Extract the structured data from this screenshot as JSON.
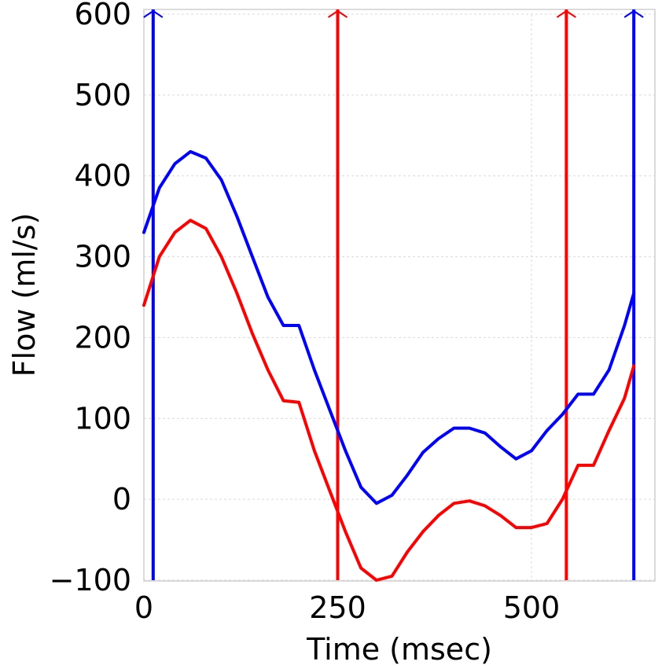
{
  "chart_data": {
    "type": "line",
    "xlabel": "Time (msec)",
    "ylabel": "Flow (ml/s)",
    "xlim": [
      0,
      660
    ],
    "ylim": [
      -100,
      600
    ],
    "xticks": [
      0,
      250,
      500
    ],
    "yticks": [
      600,
      500,
      400,
      300,
      200,
      100,
      0,
      -100
    ],
    "grid": true,
    "series": [
      {
        "color": "#0000ff",
        "x": [
          0,
          20,
          40,
          60,
          80,
          100,
          120,
          140,
          160,
          180,
          200,
          220,
          240,
          260,
          280,
          300,
          320,
          340,
          360,
          380,
          400,
          420,
          440,
          460,
          480,
          500,
          520,
          540,
          560,
          580,
          600,
          620,
          632
        ],
        "y": [
          330,
          385,
          415,
          430,
          422,
          395,
          350,
          300,
          250,
          215,
          215,
          160,
          110,
          60,
          15,
          -5,
          5,
          30,
          58,
          75,
          88,
          88,
          82,
          65,
          50,
          60,
          85,
          105,
          130,
          130,
          160,
          215,
          255
        ]
      },
      {
        "color": "#ff0000",
        "x": [
          0,
          20,
          40,
          60,
          80,
          100,
          120,
          140,
          160,
          180,
          200,
          220,
          240,
          260,
          280,
          300,
          320,
          340,
          360,
          380,
          400,
          420,
          440,
          460,
          480,
          500,
          520,
          540,
          560,
          580,
          600,
          620,
          632
        ],
        "y": [
          240,
          300,
          330,
          345,
          335,
          300,
          255,
          205,
          160,
          122,
          120,
          60,
          10,
          -40,
          -85,
          -100,
          -95,
          -65,
          -40,
          -20,
          -5,
          -2,
          -8,
          -20,
          -35,
          -35,
          -30,
          0,
          42,
          42,
          85,
          125,
          165
        ]
      }
    ],
    "vertical_lines": [
      {
        "x": 12,
        "color": "#0000ff"
      },
      {
        "x": 250,
        "color": "#ff0000"
      },
      {
        "x": 545,
        "color": "#ff0000"
      },
      {
        "x": 632,
        "color": "#0000ff"
      }
    ]
  }
}
